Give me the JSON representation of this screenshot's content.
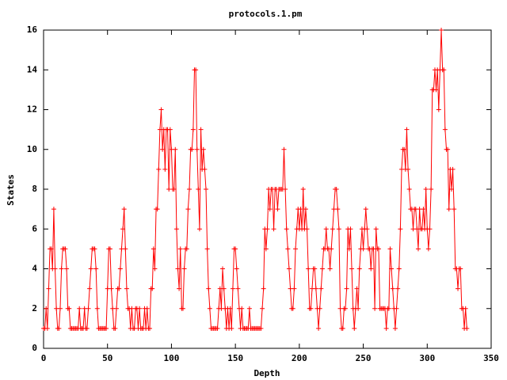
{
  "chart_data": {
    "type": "linepoints",
    "title": "protocols.1.pm",
    "x_label": "Depth",
    "y_label": "States",
    "color": "#ff0000",
    "xlim": [
      0,
      350
    ],
    "xticks": [
      0,
      50,
      100,
      150,
      200,
      250,
      300,
      350
    ],
    "ylim": [
      0,
      16
    ],
    "yticks": [
      0,
      2,
      4,
      6,
      8,
      10,
      12,
      14,
      16
    ],
    "x": [
      0,
      1,
      2,
      3,
      4,
      5,
      6,
      7,
      8,
      9,
      10,
      11,
      12,
      13,
      14,
      15,
      16,
      17,
      18,
      19,
      20,
      21,
      22,
      23,
      24,
      25,
      26,
      27,
      28,
      29,
      30,
      31,
      32,
      33,
      34,
      35,
      36,
      37,
      38,
      39,
      40,
      41,
      42,
      43,
      44,
      45,
      46,
      47,
      48,
      49,
      50,
      51,
      52,
      53,
      54,
      55,
      56,
      57,
      58,
      59,
      60,
      61,
      62,
      63,
      64,
      65,
      66,
      67,
      68,
      69,
      70,
      71,
      72,
      73,
      74,
      75,
      76,
      77,
      78,
      79,
      80,
      81,
      82,
      83,
      84,
      85,
      86,
      87,
      88,
      89,
      90,
      91,
      92,
      93,
      94,
      95,
      96,
      97,
      98,
      99,
      100,
      101,
      102,
      103,
      104,
      105,
      106,
      107,
      108,
      109,
      110,
      111,
      112,
      113,
      114,
      115,
      116,
      117,
      118,
      119,
      120,
      121,
      122,
      123,
      124,
      125,
      126,
      127,
      128,
      129,
      130,
      131,
      132,
      133,
      134,
      135,
      136,
      137,
      138,
      139,
      140,
      141,
      142,
      143,
      144,
      145,
      146,
      147,
      148,
      149,
      150,
      151,
      152,
      153,
      154,
      155,
      156,
      157,
      158,
      159,
      160,
      161,
      162,
      163,
      164,
      165,
      166,
      167,
      168,
      169,
      170,
      171,
      172,
      173,
      174,
      175,
      176,
      177,
      178,
      179,
      180,
      181,
      182,
      183,
      184,
      185,
      186,
      187,
      188,
      189,
      190,
      191,
      192,
      193,
      194,
      195,
      196,
      197,
      198,
      199,
      200,
      201,
      202,
      203,
      204,
      205,
      206,
      207,
      208,
      209,
      210,
      211,
      212,
      213,
      214,
      215,
      216,
      217,
      218,
      219,
      220,
      221,
      222,
      223,
      224,
      225,
      226,
      227,
      228,
      229,
      230,
      231,
      232,
      233,
      234,
      235,
      236,
      237,
      238,
      239,
      240,
      241,
      242,
      243,
      244,
      245,
      246,
      247,
      248,
      249,
      250,
      251,
      252,
      253,
      254,
      255,
      256,
      257,
      258,
      259,
      260,
      261,
      262,
      263,
      264,
      265,
      266,
      267,
      268,
      269,
      270,
      271,
      272,
      273,
      274,
      275,
      276,
      277,
      278,
      279,
      280,
      281,
      282,
      283,
      284,
      285,
      286,
      287,
      288,
      289,
      290,
      291,
      292,
      293,
      294,
      295,
      296,
      297,
      298,
      299,
      300,
      301,
      302,
      303,
      304,
      305,
      306,
      307,
      308,
      309,
      310,
      311,
      312,
      313,
      314,
      315,
      316,
      317,
      318,
      319,
      320,
      321,
      322,
      323,
      324,
      325,
      326,
      327,
      328,
      329,
      330,
      331
    ],
    "values": [
      1,
      1,
      2,
      1,
      3,
      5,
      5,
      4,
      7,
      4,
      2,
      1,
      1,
      2,
      4,
      5,
      5,
      5,
      4,
      2,
      2,
      1,
      1,
      1,
      1,
      1,
      1,
      1,
      2,
      1,
      1,
      1,
      2,
      1,
      1,
      2,
      3,
      4,
      5,
      5,
      5,
      4,
      2,
      1,
      1,
      1,
      1,
      1,
      1,
      1,
      3,
      5,
      5,
      3,
      2,
      1,
      1,
      2,
      3,
      3,
      4,
      5,
      6,
      7,
      5,
      3,
      2,
      2,
      1,
      2,
      1,
      1,
      2,
      2,
      1,
      2,
      1,
      1,
      1,
      2,
      1,
      2,
      1,
      1,
      3,
      3,
      5,
      4,
      7,
      7,
      9,
      11,
      12,
      10,
      11,
      9,
      11,
      11,
      8,
      11,
      10,
      8,
      8,
      10,
      6,
      4,
      3,
      5,
      2,
      2,
      4,
      5,
      5,
      7,
      8,
      10,
      10,
      11,
      14,
      14,
      10,
      8,
      6,
      11,
      9,
      10,
      9,
      8,
      5,
      3,
      2,
      1,
      1,
      1,
      1,
      1,
      1,
      2,
      3,
      2,
      4,
      3,
      2,
      1,
      2,
      1,
      2,
      1,
      3,
      5,
      5,
      4,
      3,
      2,
      1,
      2,
      1,
      1,
      1,
      1,
      1,
      2,
      1,
      1,
      1,
      1,
      1,
      1,
      1,
      1,
      1,
      2,
      3,
      6,
      5,
      6,
      8,
      7,
      8,
      8,
      6,
      8,
      8,
      7,
      8,
      8,
      8,
      8,
      10,
      8,
      6,
      5,
      4,
      3,
      2,
      2,
      3,
      5,
      6,
      7,
      6,
      7,
      6,
      8,
      6,
      7,
      6,
      4,
      2,
      2,
      3,
      4,
      4,
      3,
      2,
      1,
      2,
      3,
      4,
      5,
      5,
      6,
      5,
      5,
      4,
      5,
      6,
      7,
      8,
      8,
      7,
      6,
      2,
      1,
      1,
      2,
      2,
      3,
      6,
      5,
      6,
      4,
      2,
      1,
      2,
      3,
      2,
      4,
      5,
      6,
      5,
      6,
      7,
      6,
      5,
      5,
      4,
      5,
      5,
      2,
      6,
      5,
      5,
      2,
      2,
      2,
      2,
      2,
      1,
      2,
      2,
      5,
      4,
      3,
      2,
      1,
      2,
      3,
      4,
      6,
      9,
      10,
      10,
      9,
      11,
      9,
      8,
      7,
      7,
      6,
      7,
      7,
      6,
      5,
      7,
      6,
      6,
      7,
      6,
      8,
      6,
      5,
      6,
      8,
      13,
      13,
      14,
      13,
      14,
      12,
      14,
      16,
      14,
      14,
      11,
      10,
      10,
      7,
      9,
      8,
      9,
      7,
      4,
      4,
      3,
      4,
      4,
      2,
      2,
      1,
      2,
      1
    ]
  }
}
